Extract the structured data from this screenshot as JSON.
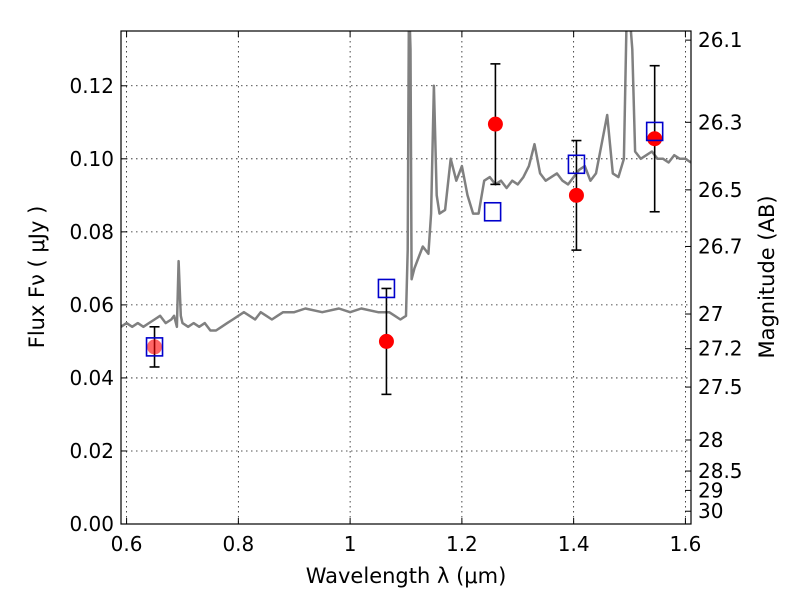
{
  "chart_data": {
    "type": "line",
    "xlabel": "Wavelength  λ (μm)",
    "ylabel": "Flux  Fν  ( μJy )",
    "y2label": "Magnitude (AB)",
    "xlim": [
      0.59,
      1.61
    ],
    "ylim": [
      0.0,
      0.135
    ],
    "grid": true,
    "x_ticks": [
      0.6,
      0.8,
      1.0,
      1.2,
      1.4,
      1.6
    ],
    "x_tick_labels": [
      "0.6",
      "0.8",
      "1",
      "1.2",
      "1.4",
      "1.6"
    ],
    "y_ticks": [
      0.0,
      0.02,
      0.04,
      0.06,
      0.08,
      0.1,
      0.12
    ],
    "y_tick_labels": [
      "0.00",
      "0.02",
      "0.04",
      "0.06",
      "0.08",
      "0.10",
      "0.12"
    ],
    "y2_ticks": [
      {
        "flux": 0.1325,
        "label": "26.1"
      },
      {
        "flux": 0.11,
        "label": "26.3"
      },
      {
        "flux": 0.0915,
        "label": "26.5"
      },
      {
        "flux": 0.076,
        "label": "26.7"
      },
      {
        "flux": 0.0575,
        "label": "27"
      },
      {
        "flux": 0.048,
        "label": "27.2"
      },
      {
        "flux": 0.0375,
        "label": "27.5"
      },
      {
        "flux": 0.023,
        "label": "28"
      },
      {
        "flux": 0.0145,
        "label": "28.5"
      },
      {
        "flux": 0.0092,
        "label": "29"
      },
      {
        "flux": 0.0035,
        "label": "30"
      }
    ],
    "series": [
      {
        "type": "line",
        "color": "#808080",
        "x": [
          0.59,
          0.6,
          0.61,
          0.62,
          0.63,
          0.64,
          0.65,
          0.66,
          0.67,
          0.68,
          0.685,
          0.69,
          0.693,
          0.697,
          0.7,
          0.71,
          0.72,
          0.73,
          0.74,
          0.75,
          0.76,
          0.77,
          0.78,
          0.79,
          0.8,
          0.81,
          0.82,
          0.83,
          0.84,
          0.85,
          0.86,
          0.87,
          0.88,
          0.9,
          0.92,
          0.95,
          0.98,
          1.0,
          1.02,
          1.05,
          1.07,
          1.08,
          1.09,
          1.1,
          1.103,
          1.105,
          1.106,
          1.108,
          1.11,
          1.115,
          1.12,
          1.13,
          1.14,
          1.145,
          1.15,
          1.155,
          1.16,
          1.17,
          1.18,
          1.19,
          1.2,
          1.21,
          1.22,
          1.23,
          1.24,
          1.25,
          1.26,
          1.27,
          1.28,
          1.29,
          1.3,
          1.31,
          1.32,
          1.33,
          1.34,
          1.35,
          1.36,
          1.37,
          1.38,
          1.39,
          1.4,
          1.41,
          1.42,
          1.43,
          1.44,
          1.45,
          1.46,
          1.47,
          1.48,
          1.49,
          1.495,
          1.5,
          1.505,
          1.51,
          1.52,
          1.53,
          1.54,
          1.55,
          1.56,
          1.57,
          1.58,
          1.59,
          1.6,
          1.61
        ],
        "y": [
          0.054,
          0.055,
          0.054,
          0.055,
          0.054,
          0.055,
          0.056,
          0.057,
          0.055,
          0.056,
          0.057,
          0.054,
          0.072,
          0.057,
          0.055,
          0.054,
          0.055,
          0.054,
          0.055,
          0.053,
          0.053,
          0.054,
          0.055,
          0.056,
          0.057,
          0.058,
          0.057,
          0.056,
          0.058,
          0.057,
          0.056,
          0.057,
          0.058,
          0.058,
          0.059,
          0.058,
          0.059,
          0.058,
          0.059,
          0.058,
          0.058,
          0.057,
          0.056,
          0.057,
          0.075,
          0.135,
          0.14,
          0.13,
          0.067,
          0.07,
          0.072,
          0.076,
          0.074,
          0.085,
          0.12,
          0.09,
          0.085,
          0.086,
          0.1,
          0.094,
          0.098,
          0.09,
          0.085,
          0.085,
          0.094,
          0.095,
          0.093,
          0.094,
          0.092,
          0.094,
          0.093,
          0.095,
          0.098,
          0.104,
          0.096,
          0.094,
          0.095,
          0.096,
          0.094,
          0.093,
          0.095,
          0.097,
          0.098,
          0.094,
          0.096,
          0.104,
          0.112,
          0.096,
          0.095,
          0.1,
          0.14,
          0.14,
          0.13,
          0.102,
          0.1,
          0.101,
          0.102,
          0.1,
          0.1,
          0.099,
          0.101,
          0.1,
          0.1,
          0.099
        ]
      },
      {
        "type": "scatter",
        "name": "",
        "color": "#ff0000",
        "x": [
          0.65,
          1.065,
          1.26,
          1.405,
          1.545
        ],
        "y": [
          0.0485,
          0.05,
          0.1095,
          0.09,
          0.1055
        ],
        "yerr": [
          0.0055,
          0.0145,
          0.0165,
          0.015,
          0.02
        ]
      },
      {
        "type": "scatter",
        "name": "",
        "color": "#0000cc",
        "marker": "square",
        "x": [
          0.65,
          1.065,
          1.255,
          1.405,
          1.545
        ],
        "y": [
          0.0485,
          0.0645,
          0.0855,
          0.0985,
          0.1075
        ]
      }
    ]
  }
}
